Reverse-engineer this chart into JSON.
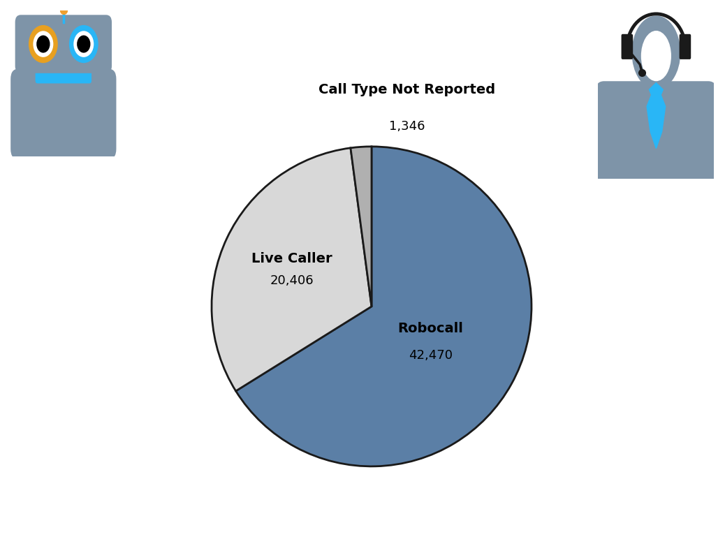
{
  "labels": [
    "Robocall",
    "Live Caller",
    "Call Type Not Reported"
  ],
  "values": [
    42470,
    20406,
    1346
  ],
  "colors": [
    "#5b7fa6",
    "#d8d8d8",
    "#b0b0b0"
  ],
  "bg_color": "#ffffff",
  "edge_color": "#1a1a1a",
  "edge_linewidth": 2.0,
  "label_fontsize": 14,
  "label_fontweight": "bold",
  "value_fontsize": 13,
  "startangle": 90,
  "robot_color": "#7e94a8",
  "robot_eye_ring1": "#e8a020",
  "robot_eye_ring2": "#29b6f6",
  "robot_mouth": "#29b6f6",
  "robot_antenna": "#29b6f6",
  "robot_antenna_tip": "#f0a030",
  "person_color": "#7e94a8",
  "person_tie": "#29b6f6",
  "person_headset": "#1a1a1a"
}
